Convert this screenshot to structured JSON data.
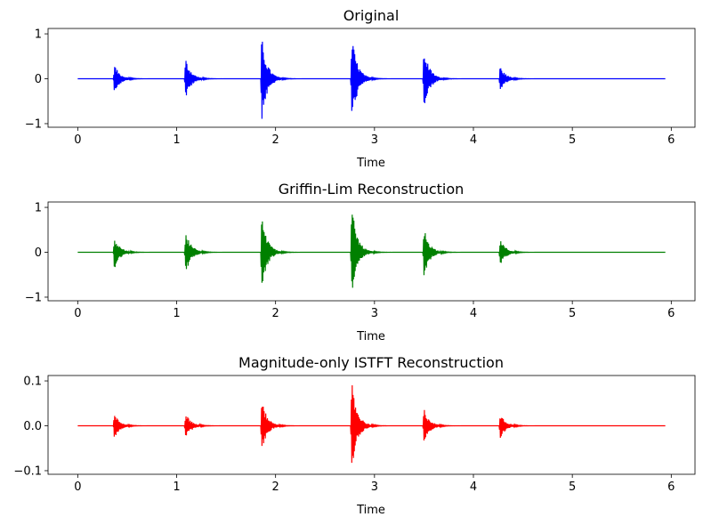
{
  "chart_data": [
    {
      "type": "line",
      "title": "Original",
      "xlabel": "Time",
      "ylabel": "",
      "xlim": [
        -0.3,
        6.24
      ],
      "ylim": [
        -1.08,
        1.12
      ],
      "xticks": [
        0,
        1,
        2,
        3,
        4,
        5,
        6
      ],
      "yticks": [
        -1,
        0,
        1
      ],
      "ytick_labels": [
        "−1",
        "0",
        "1"
      ],
      "color": "#0000ff",
      "duration": 5.94,
      "bursts": [
        {
          "t": 0.37,
          "peak": 0.33
        },
        {
          "t": 1.09,
          "peak": 0.47
        },
        {
          "t": 1.86,
          "peak": 0.95
        },
        {
          "t": 2.77,
          "peak": 1.0
        },
        {
          "t": 3.5,
          "peak": 0.72
        },
        {
          "t": 4.27,
          "peak": 0.29
        }
      ]
    },
    {
      "type": "line",
      "title": "Griffin-Lim Reconstruction",
      "xlabel": "Time",
      "ylabel": "",
      "xlim": [
        -0.3,
        6.24
      ],
      "ylim": [
        -1.08,
        1.12
      ],
      "xticks": [
        0,
        1,
        2,
        3,
        4,
        5,
        6
      ],
      "yticks": [
        -1,
        0,
        1
      ],
      "ytick_labels": [
        "−1",
        "0",
        "1"
      ],
      "color": "#008000",
      "duration": 5.94,
      "bursts": [
        {
          "t": 0.37,
          "peak": 0.38
        },
        {
          "t": 1.09,
          "peak": 0.5
        },
        {
          "t": 1.86,
          "peak": 0.85
        },
        {
          "t": 2.77,
          "peak": 1.05
        },
        {
          "t": 3.5,
          "peak": 0.57
        },
        {
          "t": 4.27,
          "peak": 0.3
        }
      ]
    },
    {
      "type": "line",
      "title": "Magnitude-only ISTFT Reconstruction",
      "xlabel": "Time",
      "ylabel": "",
      "xlim": [
        -0.3,
        6.24
      ],
      "ylim": [
        -0.108,
        0.112
      ],
      "xticks": [
        0,
        1,
        2,
        3,
        4,
        5,
        6
      ],
      "yticks": [
        -0.1,
        0.0,
        0.1
      ],
      "ytick_labels": [
        "−0.1",
        "0.0",
        "0.1"
      ],
      "color": "#ff0000",
      "duration": 5.94,
      "bursts": [
        {
          "t": 0.37,
          "peak": 0.028
        },
        {
          "t": 1.09,
          "peak": 0.03
        },
        {
          "t": 1.86,
          "peak": 0.058
        },
        {
          "t": 2.77,
          "peak": 0.1
        },
        {
          "t": 3.5,
          "peak": 0.04
        },
        {
          "t": 4.27,
          "peak": 0.03
        }
      ]
    }
  ]
}
